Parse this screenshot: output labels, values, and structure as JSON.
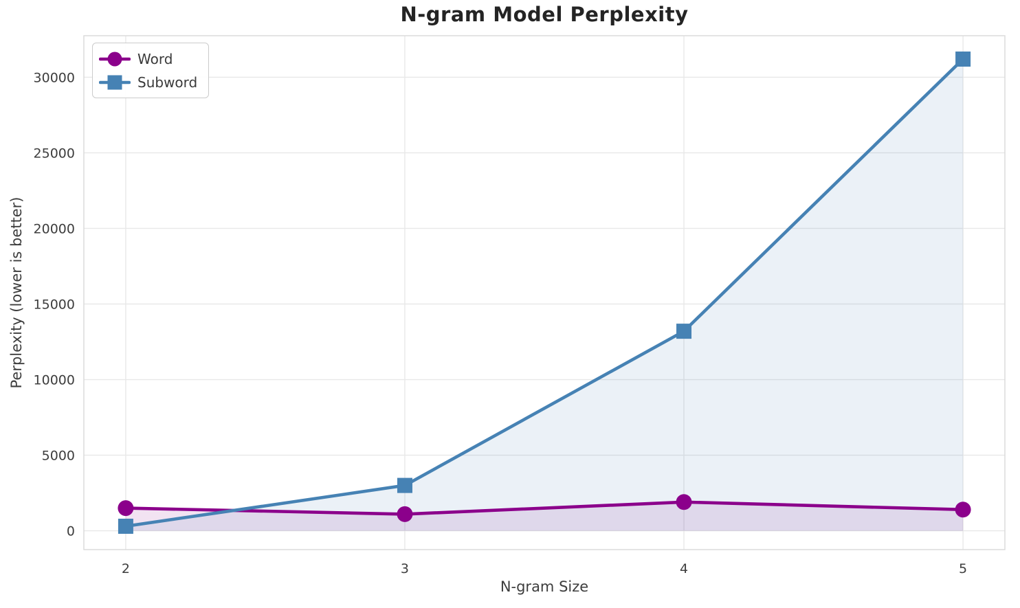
{
  "chart_data": {
    "type": "line",
    "title": "N-gram Model Perplexity",
    "xlabel": "N-gram Size",
    "ylabel": "Perplexity (lower is better)",
    "x": [
      2,
      3,
      4,
      5
    ],
    "series": [
      {
        "name": "Word",
        "values": [
          1500,
          1100,
          1900,
          1400
        ],
        "color": "#8B008B",
        "marker": "circle",
        "fill_to_zero": true
      },
      {
        "name": "Subword",
        "values": [
          300,
          3000,
          13200,
          31200
        ],
        "color": "#4682B4",
        "marker": "square",
        "fill_to_zero": true
      }
    ],
    "x_ticks": [
      2,
      3,
      4,
      5
    ],
    "x_tick_labels": [
      "2",
      "3",
      "4",
      "5"
    ],
    "y_ticks": [
      0,
      5000,
      10000,
      15000,
      20000,
      25000,
      30000
    ],
    "y_tick_labels": [
      "0",
      "5000",
      "10000",
      "15000",
      "20000",
      "25000",
      "30000"
    ],
    "xlim": [
      1.85,
      5.15
    ],
    "ylim": [
      -1245,
      32745
    ],
    "grid": true,
    "legend_position": "upper left",
    "fill_opacity": 0.11,
    "colors": {
      "grid": "#E8E8E8",
      "spine": "#DBDBDB",
      "tick_text": "#3D3D3D",
      "title_text": "#242424"
    }
  },
  "legend": {
    "items": [
      {
        "label": "Word"
      },
      {
        "label": "Subword"
      }
    ]
  }
}
